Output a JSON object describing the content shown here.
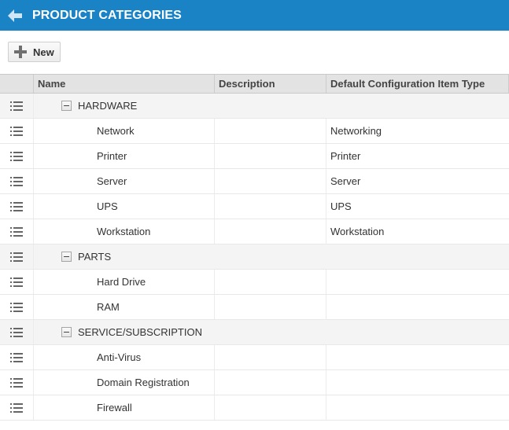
{
  "header": {
    "title": "PRODUCT CATEGORIES",
    "back_icon": "arrow-left-icon",
    "background": "#1a83c6"
  },
  "toolbar": {
    "new_label": "New",
    "new_icon": "plus-icon"
  },
  "table": {
    "columns": [
      "Name",
      "Description",
      "Default Configuration Item Type"
    ],
    "groups": [
      {
        "name": "HARDWARE",
        "children": [
          {
            "name": "Network",
            "description": "",
            "type": "Networking"
          },
          {
            "name": "Printer",
            "description": "",
            "type": "Printer"
          },
          {
            "name": "Server",
            "description": "",
            "type": "Server"
          },
          {
            "name": "UPS",
            "description": "",
            "type": "UPS"
          },
          {
            "name": "Workstation",
            "description": "",
            "type": "Workstation"
          }
        ]
      },
      {
        "name": "PARTS",
        "children": [
          {
            "name": "Hard Drive",
            "description": "",
            "type": ""
          },
          {
            "name": "RAM",
            "description": "",
            "type": ""
          }
        ]
      },
      {
        "name": "SERVICE/SUBSCRIPTION",
        "children": [
          {
            "name": "Anti-Virus",
            "description": "",
            "type": ""
          },
          {
            "name": "Domain Registration",
            "description": "",
            "type": ""
          },
          {
            "name": "Firewall",
            "description": "",
            "type": ""
          }
        ]
      }
    ]
  }
}
